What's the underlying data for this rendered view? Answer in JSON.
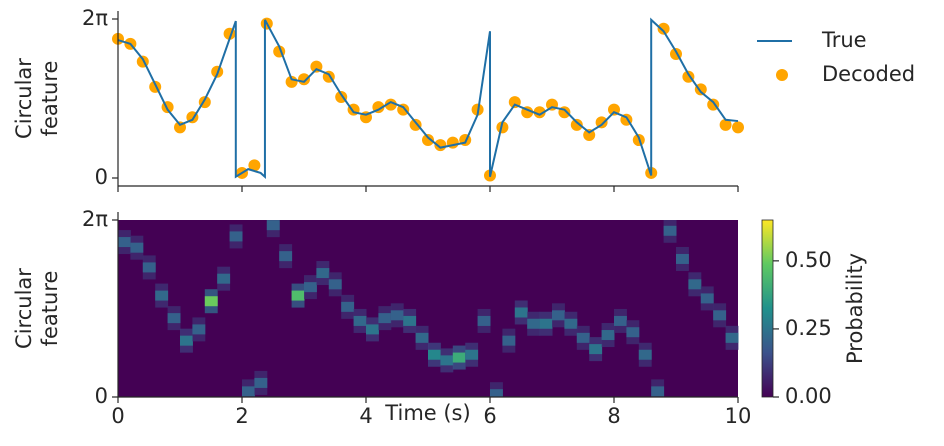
{
  "chart_data": [
    {
      "type": "line",
      "ylabel": [
        "Circular",
        "feature"
      ],
      "xlim": [
        0,
        10
      ],
      "ylim": [
        0,
        6.283
      ],
      "xticks": [
        0,
        2,
        4,
        6,
        8,
        10
      ],
      "yticks": [
        0,
        {
          "value": 6.283,
          "label": "2π"
        }
      ],
      "legend": "outside upper right",
      "series": [
        {
          "name": "True",
          "type": "line",
          "color": "#1f6fa6",
          "x": [
            0,
            0.2,
            0.4,
            0.6,
            0.8,
            1.0,
            1.2,
            1.4,
            1.6,
            1.9,
            1.9,
            2.1,
            2.3,
            2.37,
            2.37,
            2.6,
            2.8,
            3.0,
            3.2,
            3.4,
            3.6,
            3.8,
            4.0,
            4.2,
            4.4,
            4.6,
            4.8,
            5.0,
            5.2,
            5.4,
            5.6,
            5.8,
            6.0,
            6.0,
            6.2,
            6.4,
            6.6,
            6.8,
            7.0,
            7.2,
            7.4,
            7.6,
            7.8,
            8.0,
            8.2,
            8.4,
            8.6,
            8.6,
            8.8,
            9.0,
            9.2,
            9.4,
            9.6,
            9.8,
            10.0
          ],
          "values": [
            5.45,
            5.3,
            4.7,
            3.7,
            2.7,
            2.1,
            2.3,
            3.1,
            4.1,
            6.2,
            0.05,
            0.35,
            0.2,
            0.05,
            6.25,
            5.2,
            3.9,
            3.8,
            4.3,
            4.1,
            3.3,
            2.6,
            2.5,
            2.7,
            3.0,
            2.8,
            2.2,
            1.6,
            1.2,
            1.3,
            1.4,
            2.5,
            5.8,
            0.05,
            2.2,
            2.9,
            2.7,
            2.5,
            2.8,
            2.7,
            2.2,
            1.8,
            2.1,
            2.6,
            2.4,
            1.6,
            0.1,
            6.25,
            5.8,
            5.0,
            4.1,
            3.4,
            3.0,
            2.3,
            2.25
          ]
        },
        {
          "name": "Decoded",
          "type": "scatter",
          "color": "#ffa500",
          "x": [
            0,
            0.2,
            0.4,
            0.6,
            0.8,
            1.0,
            1.2,
            1.4,
            1.6,
            1.8,
            2.0,
            2.2,
            2.4,
            2.6,
            2.8,
            3.0,
            3.2,
            3.4,
            3.6,
            3.8,
            4.0,
            4.2,
            4.4,
            4.6,
            4.8,
            5.0,
            5.2,
            5.4,
            5.6,
            5.8,
            6.0,
            6.2,
            6.4,
            6.6,
            6.8,
            7.0,
            7.2,
            7.4,
            7.6,
            7.8,
            8.0,
            8.2,
            8.4,
            8.6,
            8.8,
            9.0,
            9.2,
            9.4,
            9.6,
            9.8,
            10.0
          ],
          "values": [
            5.5,
            5.3,
            4.6,
            3.6,
            2.8,
            2.0,
            2.4,
            3.0,
            4.2,
            5.7,
            0.2,
            0.5,
            6.1,
            5.0,
            3.8,
            3.9,
            4.4,
            4.0,
            3.2,
            2.7,
            2.4,
            2.8,
            2.9,
            2.7,
            2.1,
            1.5,
            1.3,
            1.4,
            1.5,
            2.7,
            0.1,
            2.0,
            3.0,
            2.6,
            2.6,
            2.9,
            2.6,
            2.1,
            1.7,
            2.2,
            2.7,
            2.3,
            1.5,
            0.2,
            5.9,
            4.9,
            4.0,
            3.5,
            2.9,
            2.1,
            2.0
          ]
        }
      ]
    },
    {
      "type": "heatmap",
      "ylabel": [
        "Circular",
        "feature"
      ],
      "xlabel": "Time (s)",
      "xlim": [
        0,
        10
      ],
      "ylim": [
        0,
        6.283
      ],
      "xticks": [
        0,
        2,
        4,
        6,
        8,
        10
      ],
      "yticks": [
        0,
        {
          "value": 6.283,
          "label": "2π"
        }
      ],
      "x": [
        0,
        0.2,
        0.4,
        0.6,
        0.8,
        1.0,
        1.2,
        1.4,
        1.6,
        1.8,
        2.0,
        2.2,
        2.4,
        2.6,
        2.8,
        3.0,
        3.2,
        3.4,
        3.6,
        3.8,
        4.0,
        4.2,
        4.4,
        4.6,
        4.8,
        5.0,
        5.2,
        5.4,
        5.6,
        5.8,
        6.0,
        6.2,
        6.4,
        6.6,
        6.8,
        7.0,
        7.2,
        7.4,
        7.6,
        7.8,
        8.0,
        8.2,
        8.4,
        8.6,
        8.8,
        9.0,
        9.2,
        9.4,
        9.6,
        9.8
      ],
      "peak": [
        5.5,
        5.3,
        4.6,
        3.6,
        2.8,
        2.0,
        2.4,
        3.4,
        4.2,
        5.7,
        0.2,
        0.5,
        6.1,
        5.0,
        3.6,
        3.9,
        4.4,
        4.0,
        3.2,
        2.7,
        2.4,
        2.8,
        2.9,
        2.7,
        2.1,
        1.5,
        1.3,
        1.4,
        1.5,
        2.7,
        0.1,
        2.0,
        3.0,
        2.6,
        2.6,
        2.9,
        2.6,
        2.1,
        1.7,
        2.2,
        2.7,
        2.3,
        1.5,
        0.2,
        5.9,
        4.9,
        4.0,
        3.5,
        2.9,
        2.1
      ],
      "values": [
        0.2,
        0.2,
        0.2,
        0.22,
        0.2,
        0.25,
        0.2,
        0.5,
        0.22,
        0.2,
        0.2,
        0.2,
        0.2,
        0.2,
        0.45,
        0.2,
        0.22,
        0.2,
        0.2,
        0.22,
        0.25,
        0.2,
        0.2,
        0.25,
        0.22,
        0.3,
        0.25,
        0.4,
        0.25,
        0.2,
        0.2,
        0.2,
        0.25,
        0.22,
        0.25,
        0.2,
        0.22,
        0.2,
        0.25,
        0.22,
        0.2,
        0.2,
        0.22,
        0.2,
        0.2,
        0.2,
        0.22,
        0.2,
        0.2,
        0.22
      ],
      "colorbar": {
        "label": "Probability",
        "lim": [
          0,
          0.65
        ],
        "ticks": [
          {
            "value": 0,
            "label": "0.00"
          },
          {
            "value": 0.25,
            "label": "0.25"
          },
          {
            "value": 0.5,
            "label": "0.50"
          }
        ]
      }
    }
  ]
}
